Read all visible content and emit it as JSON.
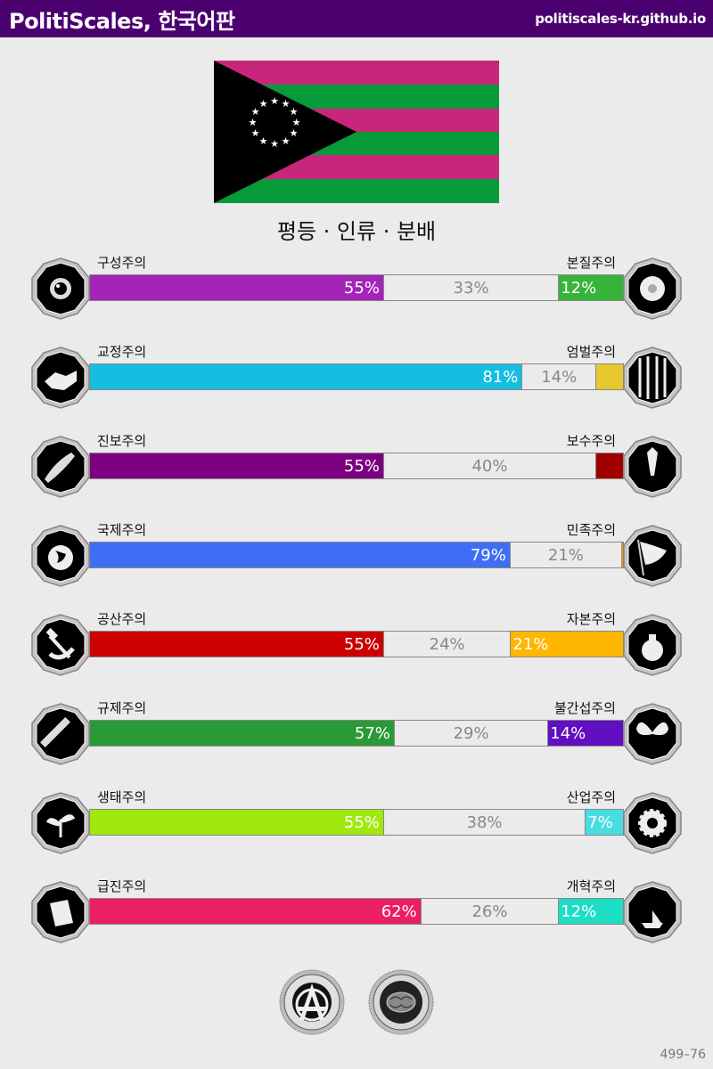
{
  "header": {
    "title": "PolitiScales, 한국어판",
    "url": "politiscales-kr.github.io",
    "background": "#4b0070"
  },
  "flag": {
    "stripes": [
      "#c8267a",
      "#079b3a",
      "#c8267a",
      "#079b3a",
      "#c8267a",
      "#079b3a"
    ],
    "triangle_color": "#000000",
    "stars": 12,
    "star_color": "#ffffff"
  },
  "ideology": "평등 · 인류 · 분배",
  "axes": [
    {
      "left_label": "구성주의",
      "right_label": "본질주의",
      "left_pct": 55,
      "mid_pct": 33,
      "right_pct": 12,
      "left_text": "55%",
      "mid_text": "33%",
      "right_text": "12%",
      "left_color": "#a424b8",
      "right_color": "#36b43a",
      "left_icon": "eye-icon",
      "right_icon": "flower-icon"
    },
    {
      "left_label": "교정주의",
      "right_label": "엄벌주의",
      "left_pct": 81,
      "mid_pct": 14,
      "right_pct": 5,
      "left_text": "81%",
      "mid_text": "14%",
      "right_text": "",
      "left_color": "#15bde0",
      "right_color": "#e6c92e",
      "left_icon": "handshake-icon",
      "right_icon": "prison-bars-icon"
    },
    {
      "left_label": "진보주의",
      "right_label": "보수주의",
      "left_pct": 55,
      "mid_pct": 40,
      "right_pct": 5,
      "left_text": "55%",
      "mid_text": "40%",
      "right_text": "",
      "left_color": "#7c0080",
      "right_color": "#a00000",
      "left_icon": "rocket-icon",
      "right_icon": "quill-pen-icon"
    },
    {
      "left_label": "국제주의",
      "right_label": "민족주의",
      "left_pct": 79,
      "mid_pct": 21,
      "right_pct": 0,
      "left_text": "79%",
      "mid_text": "21%",
      "right_text": "",
      "left_color": "#3f6ef5",
      "right_color": "#d98e2a",
      "left_icon": "globe-icon",
      "right_icon": "flag-icon"
    },
    {
      "left_label": "공산주의",
      "right_label": "자본주의",
      "left_pct": 55,
      "mid_pct": 24,
      "right_pct": 21,
      "left_text": "55%",
      "mid_text": "24%",
      "right_text": "21%",
      "left_color": "#cc0000",
      "right_color": "#ffb600",
      "left_icon": "hammer-sickle-icon",
      "right_icon": "money-bag-icon"
    },
    {
      "left_label": "규제주의",
      "right_label": "불간섭주의",
      "left_pct": 57,
      "mid_pct": 29,
      "right_pct": 14,
      "left_text": "57%",
      "mid_text": "29%",
      "right_text": "14%",
      "left_color": "#2a9a36",
      "right_color": "#6010c0",
      "left_icon": "ruler-icon",
      "right_icon": "butterfly-icon"
    },
    {
      "left_label": "생태주의",
      "right_label": "산업주의",
      "left_pct": 55,
      "mid_pct": 38,
      "right_pct": 7,
      "left_text": "55%",
      "mid_text": "38%",
      "right_text": "7%",
      "left_color": "#a0e810",
      "right_color": "#48dde0",
      "left_icon": "sprout-icon",
      "right_icon": "gear-icon"
    },
    {
      "left_label": "급진주의",
      "right_label": "개혁주의",
      "left_pct": 62,
      "mid_pct": 26,
      "right_pct": 12,
      "left_text": "62%",
      "mid_text": "26%",
      "right_text": "12%",
      "left_color": "#ec1e66",
      "right_color": "#1ddec4",
      "left_icon": "fist-icon",
      "right_icon": "paper-boat-icon"
    }
  ],
  "bonus_badges": [
    {
      "name": "anarchism-coin-icon"
    },
    {
      "name": "pragmatism-coin-icon"
    }
  ],
  "footer": {
    "code": "499–76"
  }
}
